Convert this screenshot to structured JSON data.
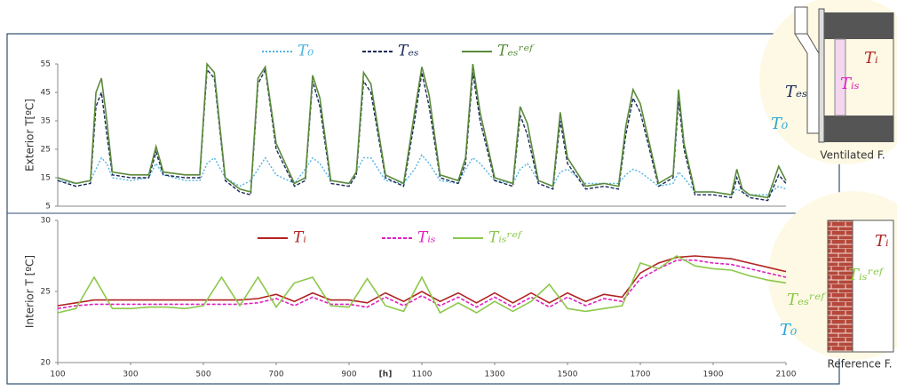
{
  "chart_data": [
    {
      "type": "line",
      "ylabel": "Exterior T[ºC]",
      "x": [
        100,
        150,
        190,
        205,
        220,
        235,
        250,
        300,
        350,
        370,
        390,
        450,
        490,
        510,
        530,
        560,
        600,
        630,
        650,
        670,
        700,
        750,
        780,
        800,
        820,
        850,
        900,
        920,
        940,
        960,
        1000,
        1050,
        1080,
        1100,
        1120,
        1150,
        1200,
        1220,
        1240,
        1260,
        1300,
        1350,
        1370,
        1390,
        1420,
        1460,
        1480,
        1500,
        1550,
        1600,
        1640,
        1660,
        1680,
        1700,
        1750,
        1790,
        1805,
        1820,
        1850,
        1900,
        1950,
        1965,
        1980,
        2000,
        2050,
        2080,
        2100
      ],
      "xlim": [
        100,
        2100
      ],
      "ylim": [
        5,
        55
      ],
      "yticks": [
        5,
        15,
        25,
        35,
        45,
        55
      ],
      "series": [
        {
          "name": "T₀",
          "color": "#4fb3e0",
          "linestyle": "dotted",
          "values": [
            14,
            13,
            14,
            18,
            22,
            20,
            15,
            14,
            15,
            20,
            16,
            14,
            14,
            20,
            22,
            15,
            12,
            14,
            18,
            22,
            16,
            13,
            18,
            22,
            20,
            14,
            13,
            17,
            22,
            22,
            14,
            13,
            18,
            23,
            20,
            14,
            13,
            18,
            22,
            20,
            14,
            13,
            18,
            20,
            14,
            12,
            17,
            18,
            13,
            13,
            13,
            16,
            18,
            17,
            12,
            13,
            17,
            15,
            10,
            10,
            9,
            11,
            10,
            9,
            9,
            12,
            11
          ]
        },
        {
          "name": "Tₑₛ",
          "color": "#1a2a5a",
          "linestyle": "dashed",
          "values": [
            14,
            12,
            13,
            40,
            45,
            30,
            16,
            15,
            15,
            24,
            16,
            15,
            15,
            53,
            50,
            14,
            10,
            9,
            48,
            53,
            25,
            12,
            14,
            49,
            40,
            13,
            12,
            16,
            49,
            45,
            15,
            12,
            35,
            52,
            40,
            15,
            13,
            20,
            52,
            35,
            14,
            12,
            37,
            30,
            13,
            11,
            35,
            20,
            11,
            12,
            11,
            30,
            43,
            38,
            12,
            15,
            42,
            25,
            9,
            9,
            8,
            15,
            10,
            8,
            7,
            16,
            13
          ]
        },
        {
          "name": "Tₑₛʳᵉᶠ",
          "color": "#5a8a3a",
          "linestyle": "solid",
          "values": [
            15,
            13,
            14,
            45,
            50,
            35,
            17,
            16,
            16,
            26,
            17,
            16,
            16,
            55,
            52,
            15,
            11,
            10,
            50,
            54,
            27,
            13,
            15,
            51,
            43,
            14,
            13,
            17,
            52,
            48,
            16,
            13,
            38,
            54,
            44,
            16,
            14,
            22,
            55,
            38,
            15,
            13,
            40,
            34,
            14,
            12,
            38,
            22,
            12,
            13,
            12,
            33,
            46,
            41,
            13,
            16,
            46,
            27,
            10,
            10,
            9,
            18,
            11,
            9,
            8,
            19,
            14
          ]
        }
      ]
    },
    {
      "type": "line",
      "ylabel": "Interior T [ºC]",
      "xlabel": "[h]",
      "x": [
        100,
        150,
        200,
        250,
        300,
        350,
        400,
        450,
        500,
        550,
        600,
        650,
        700,
        750,
        800,
        850,
        900,
        950,
        1000,
        1050,
        1100,
        1150,
        1200,
        1250,
        1300,
        1350,
        1400,
        1450,
        1500,
        1550,
        1600,
        1650,
        1700,
        1750,
        1800,
        1850,
        1900,
        1950,
        2000,
        2050,
        2100
      ],
      "xlim": [
        100,
        2100
      ],
      "xticks": [
        100,
        300,
        500,
        700,
        900,
        1100,
        1300,
        1500,
        1700,
        1900,
        2100
      ],
      "ylim": [
        20,
        30
      ],
      "yticks": [
        20,
        25,
        30
      ],
      "series": [
        {
          "name": "Tᵢ",
          "color": "#b22222",
          "linestyle": "solid",
          "values": [
            24.0,
            24.2,
            24.4,
            24.4,
            24.4,
            24.4,
            24.4,
            24.4,
            24.4,
            24.4,
            24.4,
            24.5,
            24.8,
            24.3,
            24.9,
            24.4,
            24.4,
            24.2,
            24.9,
            24.3,
            25.0,
            24.3,
            24.9,
            24.2,
            24.9,
            24.2,
            24.9,
            24.2,
            24.9,
            24.3,
            24.8,
            24.6,
            26.3,
            27.0,
            27.4,
            27.5,
            27.4,
            27.3,
            27.0,
            26.7,
            26.4
          ]
        },
        {
          "name": "Tᵢₛ",
          "color": "#e020c0",
          "linestyle": "dashed",
          "values": [
            23.8,
            24.0,
            24.1,
            24.1,
            24.1,
            24.1,
            24.1,
            24.1,
            24.1,
            24.1,
            24.1,
            24.2,
            24.5,
            24.0,
            24.6,
            24.1,
            24.1,
            23.9,
            24.6,
            24.0,
            24.7,
            24.0,
            24.6,
            23.9,
            24.6,
            23.9,
            24.6,
            23.9,
            24.6,
            24.0,
            24.5,
            24.3,
            25.9,
            26.6,
            27.2,
            27.2,
            27.0,
            26.9,
            26.6,
            26.3,
            26.0
          ]
        },
        {
          "name": "Tᵢₛʳᵉᶠ",
          "color": "#8cc84b",
          "linestyle": "solid",
          "values": [
            23.5,
            23.8,
            26.0,
            23.8,
            23.8,
            23.9,
            23.9,
            23.8,
            24.0,
            26.0,
            24.0,
            26.0,
            23.9,
            25.6,
            26.0,
            24.0,
            23.9,
            25.9,
            24.0,
            23.6,
            26.0,
            23.5,
            24.2,
            23.5,
            24.3,
            23.6,
            24.3,
            25.5,
            23.8,
            23.6,
            23.8,
            24.0,
            27.0,
            26.6,
            27.5,
            26.8,
            26.6,
            26.5,
            26.1,
            25.8,
            25.6
          ]
        }
      ]
    }
  ],
  "diagrams": [
    {
      "caption": "Ventilated F.",
      "labels": [
        "Tᵢ",
        "Tᵢₛ",
        "Tₑₛ",
        "T₀"
      ]
    },
    {
      "caption": "Reference F.",
      "labels": [
        "Tᵢ",
        "Tᵢₛʳᵉᶠ",
        "Tₑₛʳᵉᶠ",
        "T₀"
      ]
    }
  ]
}
